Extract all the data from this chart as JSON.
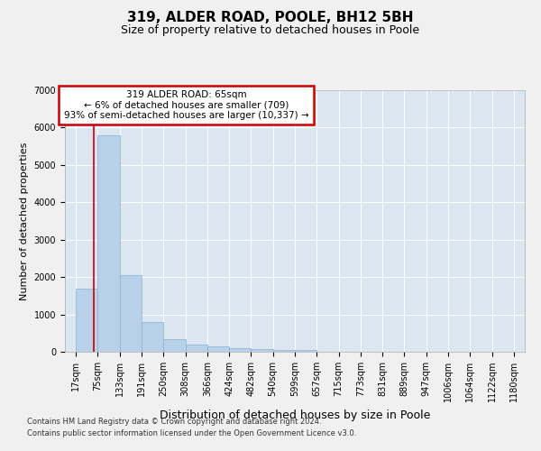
{
  "title": "319, ALDER ROAD, POOLE, BH12 5BH",
  "subtitle": "Size of property relative to detached houses in Poole",
  "xlabel": "Distribution of detached houses by size in Poole",
  "ylabel": "Number of detached properties",
  "footnote1": "Contains HM Land Registry data © Crown copyright and database right 2024.",
  "footnote2": "Contains public sector information licensed under the Open Government Licence v3.0.",
  "bar_color": "#b8d0e8",
  "bar_edgecolor": "#8ab0d0",
  "background_color": "#dce6f0",
  "annotation_box_text": "319 ALDER ROAD: 65sqm\n← 6% of detached houses are smaller (709)\n93% of semi-detached houses are larger (10,337) →",
  "annotation_box_color": "#cc0000",
  "red_line_x": 65,
  "bin_edges": [
    17,
    75,
    133,
    191,
    250,
    308,
    366,
    424,
    482,
    540,
    599,
    657,
    715,
    773,
    831,
    889,
    947,
    1006,
    1064,
    1122,
    1180
  ],
  "bin_counts": [
    1700,
    5800,
    2050,
    800,
    330,
    190,
    145,
    100,
    75,
    55,
    45,
    0,
    0,
    0,
    0,
    0,
    0,
    0,
    0,
    0
  ],
  "ylim": [
    0,
    7000
  ],
  "yticks": [
    0,
    1000,
    2000,
    3000,
    4000,
    5000,
    6000,
    7000
  ],
  "grid_color": "#ffffff",
  "title_fontsize": 11,
  "subtitle_fontsize": 9,
  "tick_fontsize": 7,
  "ylabel_fontsize": 8,
  "xlabel_fontsize": 9
}
